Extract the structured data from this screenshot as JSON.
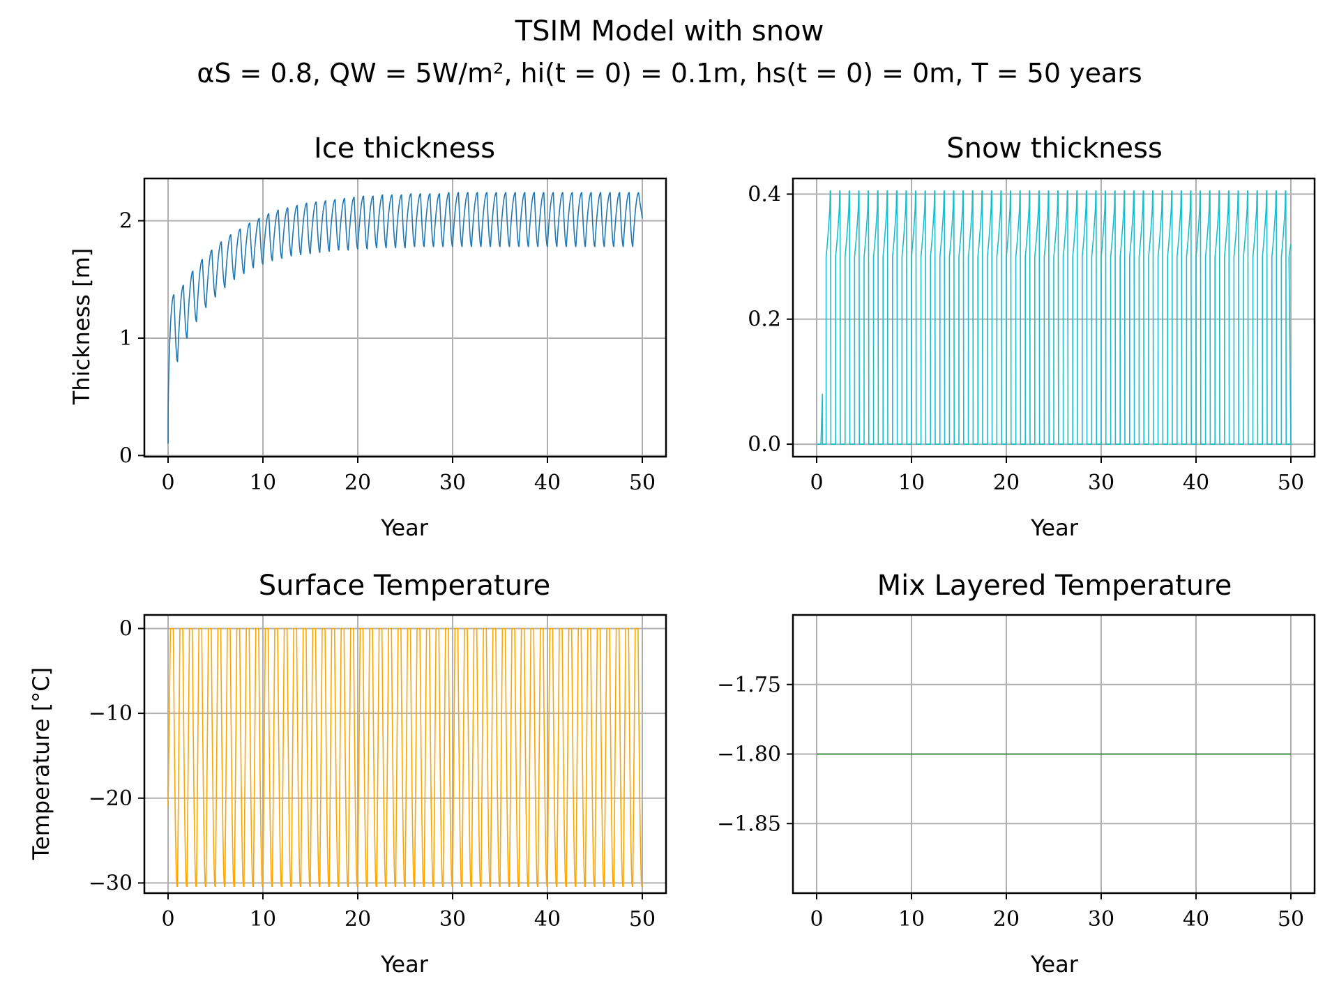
{
  "figure": {
    "title": "TSIM Model with snow",
    "subtitle": "αS = 0.8, QW = 5W/m², hi(t = 0) = 0.1m, hs(t = 0) = 0m, T = 50 years"
  },
  "colors": {
    "ice": "#1f77b4",
    "snow": "#17becf",
    "surface": "#ffa500",
    "mix": "#008000",
    "grid": "#b0b0b0"
  },
  "chart_data": [
    {
      "id": "ice",
      "type": "line",
      "title": "Ice thickness",
      "xlabel": "Year",
      "ylabel": "Thickness [m]",
      "xlim": [
        -2.5,
        52.5
      ],
      "ylim": [
        -0.01,
        2.36
      ],
      "xticks": [
        0,
        10,
        20,
        30,
        40,
        50
      ],
      "yticks": [
        0,
        1,
        2
      ],
      "ytick_labels": [
        "0",
        "1",
        "2"
      ],
      "grid": true,
      "series": [
        {
          "color": "#1f77b4",
          "pattern": "annual_cycle",
          "years": 50,
          "start": 0.1,
          "first_peak": 1.37,
          "first_trough": 0.8,
          "peak_max": [
            1.37,
            1.45,
            1.57,
            1.67,
            1.75,
            1.82,
            1.88,
            1.93,
            1.98,
            2.02,
            2.06,
            2.09,
            2.11,
            2.13,
            2.15,
            2.16,
            2.17,
            2.18,
            2.19,
            2.2,
            2.21,
            2.21,
            2.22,
            2.22,
            2.22,
            2.23,
            2.23,
            2.23,
            2.23,
            2.24,
            2.24,
            2.24,
            2.24,
            2.24,
            2.24,
            2.24,
            2.24,
            2.24,
            2.24,
            2.24,
            2.24,
            2.24,
            2.24,
            2.24,
            2.24,
            2.24,
            2.24,
            2.24,
            2.24,
            2.24
          ],
          "trough_min": [
            0.8,
            1.0,
            1.14,
            1.26,
            1.35,
            1.43,
            1.5,
            1.55,
            1.6,
            1.63,
            1.66,
            1.68,
            1.7,
            1.71,
            1.72,
            1.73,
            1.74,
            1.75,
            1.75,
            1.76,
            1.76,
            1.77,
            1.77,
            1.77,
            1.77,
            1.78,
            1.78,
            1.78,
            1.78,
            1.78,
            1.78,
            1.78,
            1.78,
            1.78,
            1.78,
            1.78,
            1.78,
            1.78,
            1.78,
            1.78,
            1.78,
            1.78,
            1.78,
            1.78,
            1.78,
            1.78,
            1.78,
            1.78,
            1.78,
            1.78
          ],
          "end": 2.02
        }
      ]
    },
    {
      "id": "snow",
      "type": "line",
      "title": "Snow thickness",
      "xlabel": "Year",
      "ylabel": "",
      "xlim": [
        -2.5,
        52.5
      ],
      "ylim": [
        -0.02,
        0.425
      ],
      "xticks": [
        0,
        10,
        20,
        30,
        40,
        50
      ],
      "yticks": [
        0,
        0.2,
        0.4
      ],
      "ytick_labels": [
        "0.0",
        "0.2",
        "0.4"
      ],
      "grid": true,
      "series": [
        {
          "color": "#17becf",
          "pattern": "snow_cycle",
          "years": 50,
          "first_year_peak": 0.085,
          "accumulation_start": 0.3,
          "peak": 0.405,
          "end": 0.32
        }
      ]
    },
    {
      "id": "surface",
      "type": "line",
      "title": "Surface Temperature",
      "xlabel": "Year",
      "ylabel": "Temperature [°C]",
      "xlim": [
        -2.5,
        52.5
      ],
      "ylim": [
        -31.2,
        1.6
      ],
      "xticks": [
        0,
        10,
        20,
        30,
        40,
        50
      ],
      "yticks": [
        0,
        -10,
        -20,
        -30
      ],
      "ytick_labels": [
        "0",
        "−10",
        "−20",
        "−30"
      ],
      "grid": true,
      "series": [
        {
          "color": "#ffa500",
          "pattern": "temperature_cycle",
          "years": 50,
          "first_min": -21,
          "max": 0,
          "min": -30.4
        }
      ]
    },
    {
      "id": "mix",
      "type": "line",
      "title": "Mix Layered Temperature",
      "xlabel": "Year",
      "ylabel": "",
      "xlim": [
        -2.5,
        52.5
      ],
      "ylim": [
        -1.9,
        -1.7
      ],
      "xticks": [
        0,
        10,
        20,
        30,
        40,
        50
      ],
      "yticks": [
        -1.75,
        -1.8,
        -1.85
      ],
      "ytick_labels": [
        "−1.75",
        "−1.80",
        "−1.85"
      ],
      "grid": true,
      "series": [
        {
          "color": "#008000",
          "pattern": "constant",
          "x": [
            0,
            50
          ],
          "y": [
            -1.8,
            -1.8
          ]
        }
      ]
    }
  ]
}
